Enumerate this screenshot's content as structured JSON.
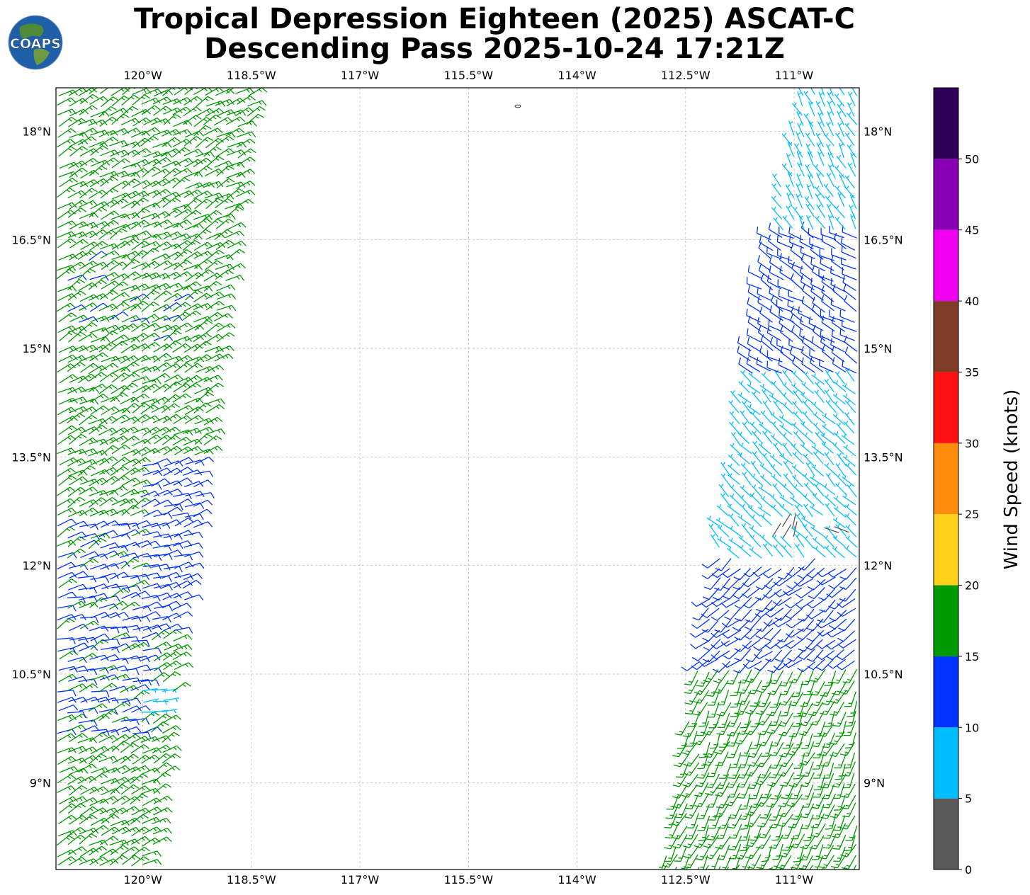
{
  "chart_data": {
    "type": "wind-barb",
    "title_lines": [
      "Tropical Depression Eighteen (2025) ASCAT-C",
      "Descending Pass 2025-10-24 17:21Z"
    ],
    "logo_text": "COAPS",
    "xlim": [
      -121.2,
      -110.1
    ],
    "ylim": [
      7.8,
      18.6
    ],
    "x_ticks": [
      {
        "value": -120.0,
        "label": "120°W"
      },
      {
        "value": -118.5,
        "label": "118.5°W"
      },
      {
        "value": -117.0,
        "label": "117°W"
      },
      {
        "value": -115.5,
        "label": "115.5°W"
      },
      {
        "value": -114.0,
        "label": "114°W"
      },
      {
        "value": -112.5,
        "label": "112.5°W"
      },
      {
        "value": -111.0,
        "label": "111°W"
      }
    ],
    "y_ticks": [
      {
        "value": 18.0,
        "label": "18°N"
      },
      {
        "value": 16.5,
        "label": "16.5°N"
      },
      {
        "value": 15.0,
        "label": "15°N"
      },
      {
        "value": 13.5,
        "label": "13.5°N"
      },
      {
        "value": 12.0,
        "label": "12°N"
      },
      {
        "value": 10.5,
        "label": "10.5°N"
      },
      {
        "value": 9.0,
        "label": "9°N"
      }
    ],
    "grid": true,
    "colorbar": {
      "label": "Wind Speed (knots)",
      "bounds": [
        0,
        5,
        10,
        15,
        20,
        25,
        30,
        35,
        40,
        45,
        50,
        55
      ],
      "colors": [
        "#595959",
        "#00bfff",
        "#0033ff",
        "#009900",
        "#ffd11a",
        "#ff8c0a",
        "#ff1010",
        "#803d26",
        "#f000f0",
        "#8800b3",
        "#2e0057"
      ],
      "tick_labels": [
        "0",
        "5",
        "10",
        "15",
        "20",
        "25",
        "30",
        "35",
        "40",
        "45",
        "50"
      ]
    },
    "swaths": [
      {
        "name": "west",
        "coverage": [
          [
            -121.2,
            18.6
          ],
          [
            -118.5,
            18.6
          ],
          [
            -119.9,
            7.8
          ],
          [
            -121.2,
            7.8
          ]
        ],
        "default_speed_kt": 17,
        "wind_from_deg": 60,
        "regions": [
          {
            "lon": [
              -121.2,
              -119.5
            ],
            "lat": [
              15.0,
              16.3
            ],
            "speed_kt": 12,
            "wind_from_deg": 65,
            "sparse": 0.85
          },
          {
            "lon": [
              -120.1,
              -118.6
            ],
            "lat": [
              11.0,
              13.5
            ],
            "speed_kt": 12,
            "wind_from_deg": 70,
            "sparse": 0.0
          },
          {
            "lon": [
              -121.2,
              -119.9
            ],
            "lat": [
              9.6,
              12.6
            ],
            "speed_kt": 12,
            "wind_from_deg": 75,
            "sparse": 0.25
          },
          {
            "lon": [
              -120.05,
              -119.7
            ],
            "lat": [
              9.9,
              10.3
            ],
            "speed_kt": 7,
            "wind_from_deg": 85,
            "sparse": 0.0
          }
        ]
      },
      {
        "name": "east",
        "coverage": [
          [
            -110.9,
            18.6
          ],
          [
            -110.1,
            18.6
          ],
          [
            -110.1,
            7.8
          ],
          [
            -112.8,
            7.8
          ],
          [
            -111.6,
            15.2
          ]
        ],
        "default_speed_kt": 8,
        "wind_from_deg": 330,
        "regions": [
          {
            "lon": [
              -111.9,
              -110.1
            ],
            "lat": [
              14.2,
              16.6
            ],
            "speed_kt": 12,
            "wind_from_deg": 300,
            "sparse": 0.0
          },
          {
            "lon": [
              -112.9,
              -110.1
            ],
            "lat": [
              11.8,
              14.6
            ],
            "speed_kt": 7,
            "wind_from_deg": 315,
            "sparse": 0.0
          },
          {
            "lon": [
              -112.9,
              -110.1
            ],
            "lat": [
              10.4,
              12.1
            ],
            "speed_kt": 12,
            "wind_from_deg": 230,
            "sparse": 0.0
          },
          {
            "lon": [
              -113.0,
              -110.1
            ],
            "lat": [
              7.8,
              10.6
            ],
            "speed_kt": 17,
            "wind_from_deg": 205,
            "sparse": 0.0
          },
          {
            "lon": [
              -111.3,
              -110.9
            ],
            "lat": [
              12.3,
              12.6
            ],
            "speed_kt": 3,
            "wind_from_deg": 20,
            "sparse": 0.0
          },
          {
            "lon": [
              -110.6,
              -110.3
            ],
            "lat": [
              12.45,
              12.65
            ],
            "speed_kt": 3,
            "wind_from_deg": 120,
            "sparse": 0.0
          }
        ]
      }
    ]
  }
}
